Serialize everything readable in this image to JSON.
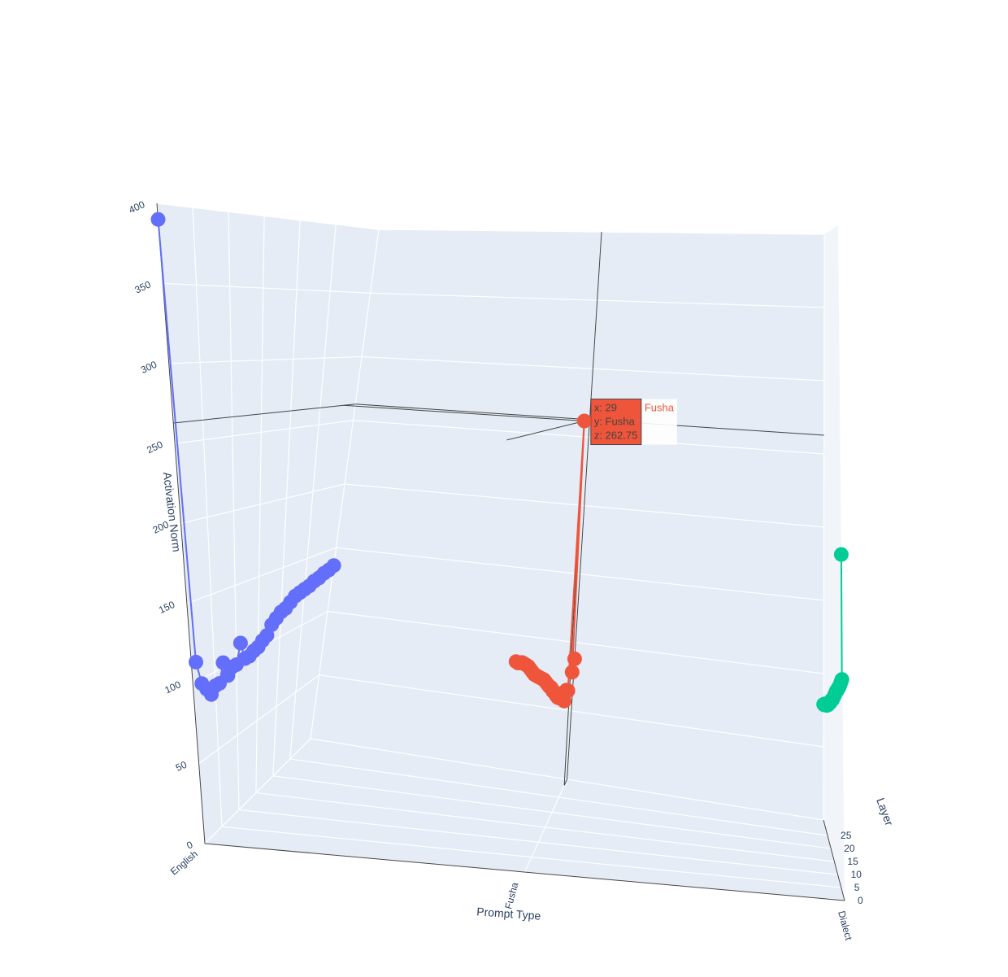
{
  "chart_data": {
    "type": "scatter3d",
    "mode": "lines+markers",
    "axes": {
      "x": {
        "title": "Layer",
        "range": [
          0,
          31
        ],
        "ticks": [
          0,
          5,
          10,
          15,
          20,
          25
        ]
      },
      "y": {
        "title": "Prompt Type",
        "categories": [
          "English",
          "Fusha",
          "Dialect"
        ]
      },
      "z": {
        "title": "Activation Norm",
        "range": [
          0,
          400
        ],
        "ticks": [
          0,
          50,
          100,
          150,
          200,
          250,
          300,
          350,
          400
        ]
      }
    },
    "series": [
      {
        "name": "English",
        "color": "#636efa",
        "x": [
          0,
          1,
          2,
          3,
          4,
          5,
          6,
          7,
          8,
          9,
          10,
          11,
          12,
          13,
          14,
          15,
          16,
          17,
          18,
          19,
          20,
          21,
          22,
          23,
          24,
          25,
          26,
          27,
          28,
          29,
          30,
          31
        ],
        "y": "English",
        "z": [
          390,
          112,
          97,
          92,
          87,
          91,
          91,
          103,
          93,
          97,
          97,
          110,
          98,
          98,
          100,
          101,
          104,
          106,
          112,
          115,
          118,
          119,
          122,
          125,
          126,
          127,
          128,
          130,
          131,
          133,
          134,
          136
        ]
      },
      {
        "name": "Fusha",
        "color": "#ef553b",
        "x": [
          31,
          30,
          29,
          28,
          27,
          26,
          25,
          24,
          23,
          22,
          21,
          20,
          19,
          18,
          17,
          16,
          15,
          14,
          13,
          12,
          11,
          10,
          9,
          8,
          7,
          6,
          5,
          4,
          3,
          2,
          1,
          0
        ],
        "y": "Fusha",
        "z": [
          88,
          80,
          262.75,
          70,
          72,
          66,
          71,
          71,
          73,
          75,
          78,
          82,
          84,
          88,
          90,
          93,
          96,
          99,
          101,
          103,
          105,
          107,
          109,
          112,
          115,
          118,
          120,
          122,
          124,
          125,
          126,
          128
        ]
      },
      {
        "name": "Dialect",
        "color": "#00cc96",
        "x": [
          0,
          1,
          2,
          3,
          4,
          5,
          6,
          7,
          8,
          9,
          10,
          11,
          12,
          13,
          14,
          15,
          16,
          17,
          18,
          19,
          20,
          21,
          22,
          23,
          24,
          25,
          26,
          27,
          28,
          29,
          30,
          31
        ],
        "y": "Dialect",
        "z": [
          205,
          130,
          128,
          126,
          124,
          122,
          120,
          119,
          117,
          115,
          114,
          112,
          110,
          108,
          106,
          104,
          102,
          100,
          99,
          97,
          95,
          93,
          92,
          90,
          88,
          87,
          85,
          84,
          83,
          82,
          80,
          79
        ]
      }
    ],
    "hover": {
      "lines": [
        "x: 29",
        "y: Fusha",
        "z: 262.75"
      ],
      "trace_name": "Fusha"
    },
    "background_color": "#e5ecf6",
    "gridline_color": "#ffffff"
  }
}
